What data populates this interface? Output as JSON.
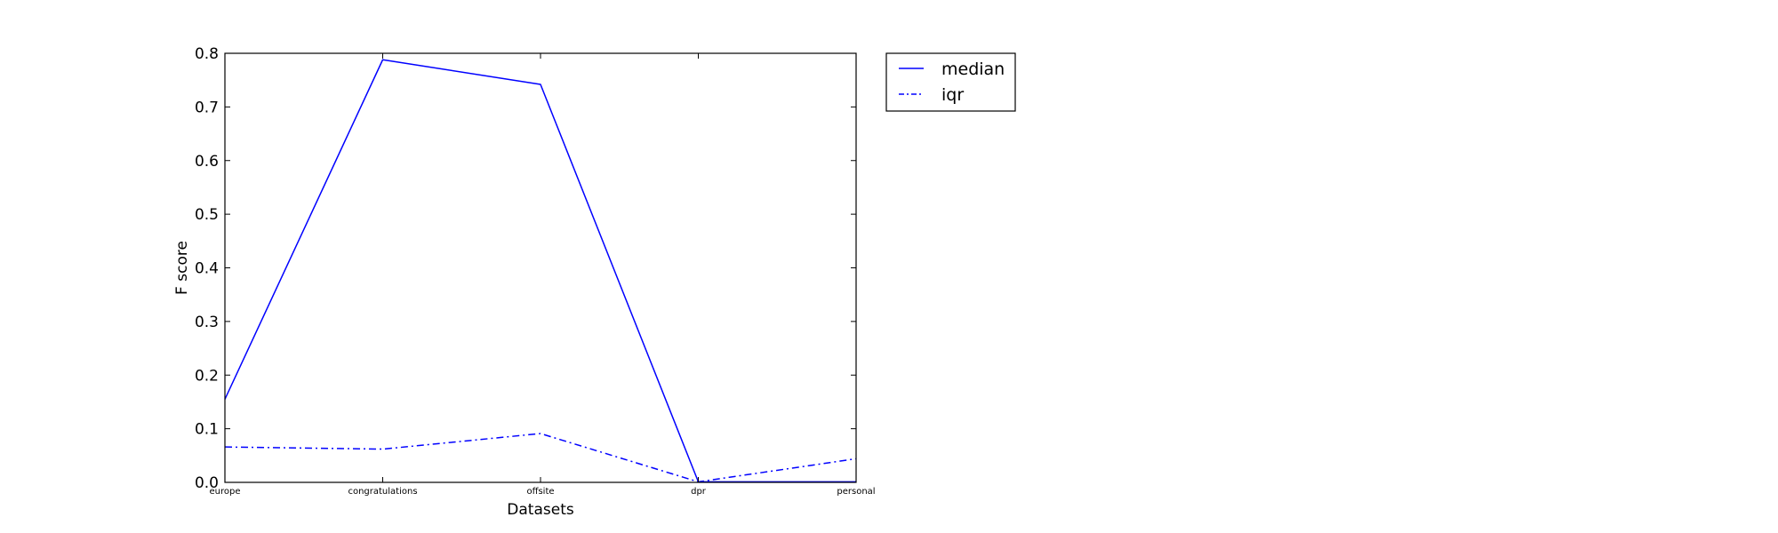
{
  "chart_data": {
    "type": "line",
    "categories": [
      "europe",
      "congratulations",
      "offsite",
      "dpr",
      "personal"
    ],
    "series": [
      {
        "name": "median",
        "values": [
          0.155,
          0.788,
          0.742,
          0.001,
          0.001
        ],
        "color": "#0000ff",
        "style": "solid"
      },
      {
        "name": "iqr",
        "values": [
          0.066,
          0.062,
          0.091,
          0.001,
          0.044
        ],
        "color": "#0000ff",
        "style": "dashdot"
      }
    ],
    "title": "",
    "xlabel": "Datasets",
    "ylabel": "F score",
    "ylim": [
      0,
      0.8
    ],
    "yticks": [
      0.0,
      0.1,
      0.2,
      0.3,
      0.4,
      0.5,
      0.6,
      0.7,
      0.8
    ],
    "ytick_labels": [
      "0.0",
      "0.1",
      "0.2",
      "0.3",
      "0.4",
      "0.5",
      "0.6",
      "0.7",
      "0.8"
    ],
    "grid": false,
    "legend_placement": "outside-right-top"
  }
}
